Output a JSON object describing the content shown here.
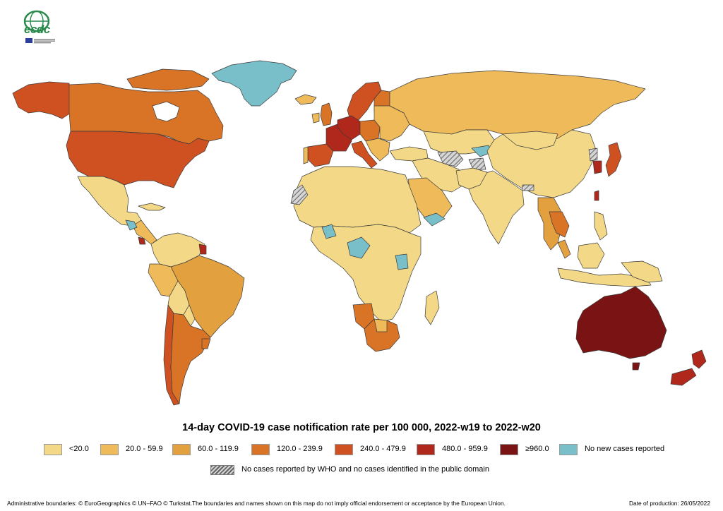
{
  "header": {
    "logo_name": "ecdc-logo",
    "logo_text": "ecdc"
  },
  "map": {
    "title": "14-day COVID-19 case notification rate per 100 000, 2022-w19 to 2022-w20",
    "legend": [
      {
        "label": "<20.0",
        "color": "#f3d987"
      },
      {
        "label": "20.0 - 59.9",
        "color": "#efbb5a"
      },
      {
        "label": "60.0 - 119.9",
        "color": "#e3a03e"
      },
      {
        "label": "120.0 - 239.9",
        "color": "#d97427"
      },
      {
        "label": "240.0 - 479.9",
        "color": "#cf5020"
      },
      {
        "label": "480.0 - 959.9",
        "color": "#b0271b"
      },
      {
        "label": "≥960.0",
        "color": "#7a1414"
      },
      {
        "label": "No new cases reported",
        "color": "#79bfc9"
      }
    ],
    "no_data": {
      "label": "No cases reported by WHO and no cases identified in the public domain",
      "pattern": "hatched-grey"
    }
  },
  "footer": {
    "attribution": "Administrative boundaries: © EuroGeographics © UN–FAO © Turkstat.The boundaries and names shown on this map do not imply official endorsement or acceptance by the European Union.",
    "production_date": "Date of production: 26/05/2022"
  }
}
